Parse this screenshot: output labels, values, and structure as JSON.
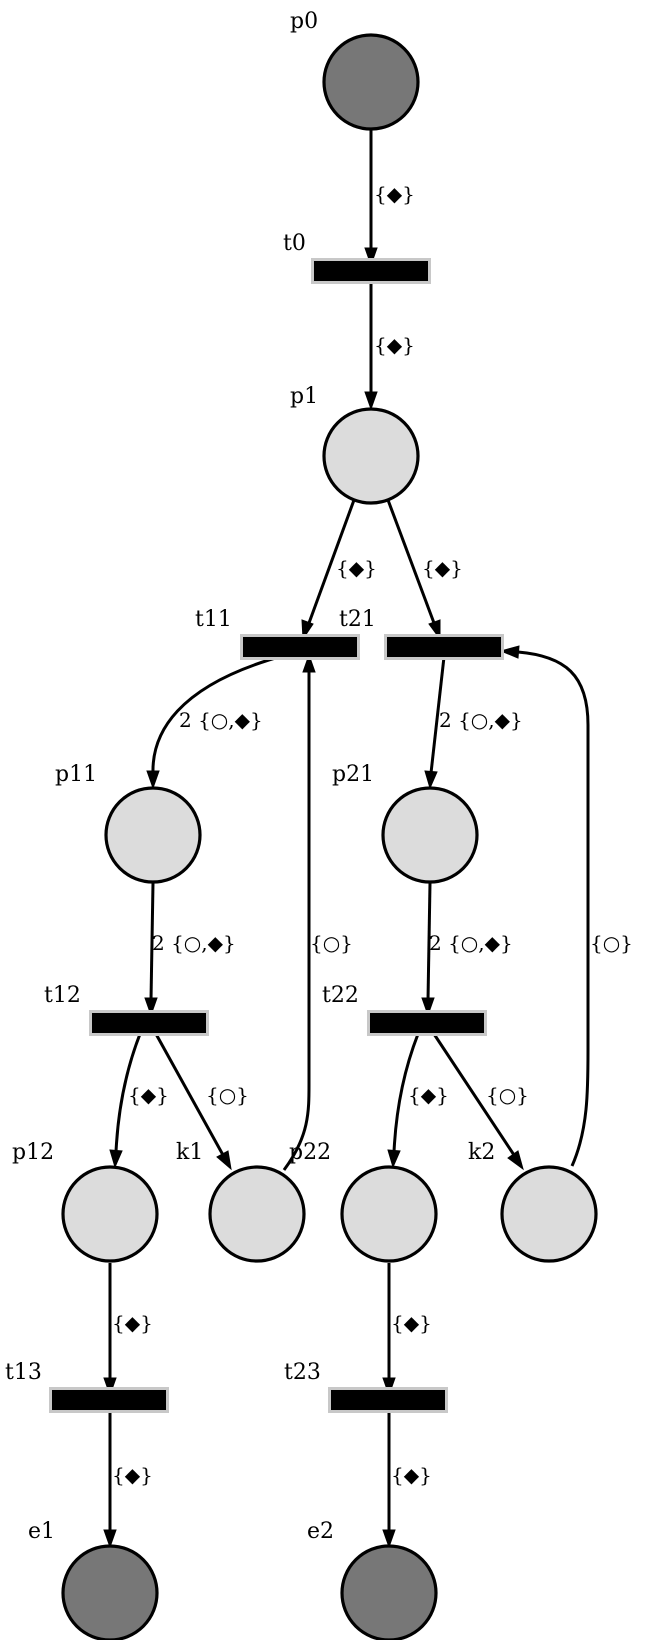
{
  "places": {
    "p0": {
      "label": "p0",
      "state": "dark"
    },
    "p1": {
      "label": "p1",
      "state": "light"
    },
    "p11": {
      "label": "p11",
      "state": "light"
    },
    "p21": {
      "label": "p21",
      "state": "light"
    },
    "p12": {
      "label": "p12",
      "state": "light"
    },
    "k1": {
      "label": "k1",
      "state": "light"
    },
    "p22": {
      "label": "p22",
      "state": "light"
    },
    "k2": {
      "label": "k2",
      "state": "light"
    },
    "e1": {
      "label": "e1",
      "state": "dark"
    },
    "e2": {
      "label": "e2",
      "state": "dark"
    }
  },
  "transitions": {
    "t0": {
      "label": "t0"
    },
    "t11": {
      "label": "t11"
    },
    "t21": {
      "label": "t21"
    },
    "t12": {
      "label": "t12"
    },
    "t22": {
      "label": "t22"
    },
    "t13": {
      "label": "t13"
    },
    "t23": {
      "label": "t23"
    }
  },
  "arcs": {
    "p0_t0": "{◆}",
    "t0_p1": "{◆}",
    "p1_t11": "{◆}",
    "p1_t21": "{◆}",
    "t11_p11": "2 {○,◆}",
    "t21_p21": "2 {○,◆}",
    "p11_t12": "2 {○,◆}",
    "p21_t22": "2 {○,◆}",
    "k1_t11": "{○}",
    "k2_t21": "{○}",
    "t12_p12": "{◆}",
    "t12_k1": "{○}",
    "t22_p22": "{◆}",
    "t22_k2": "{○}",
    "p12_t13": "{◆}",
    "t13_e1": "{◆}",
    "p22_t23": "{◆}",
    "t23_e2": "{◆}"
  },
  "colors": {
    "place_light": "#dcdcdc",
    "place_dark": "#777777",
    "transition_bar": "#000000",
    "transition_frame": "#c8c8c8"
  }
}
